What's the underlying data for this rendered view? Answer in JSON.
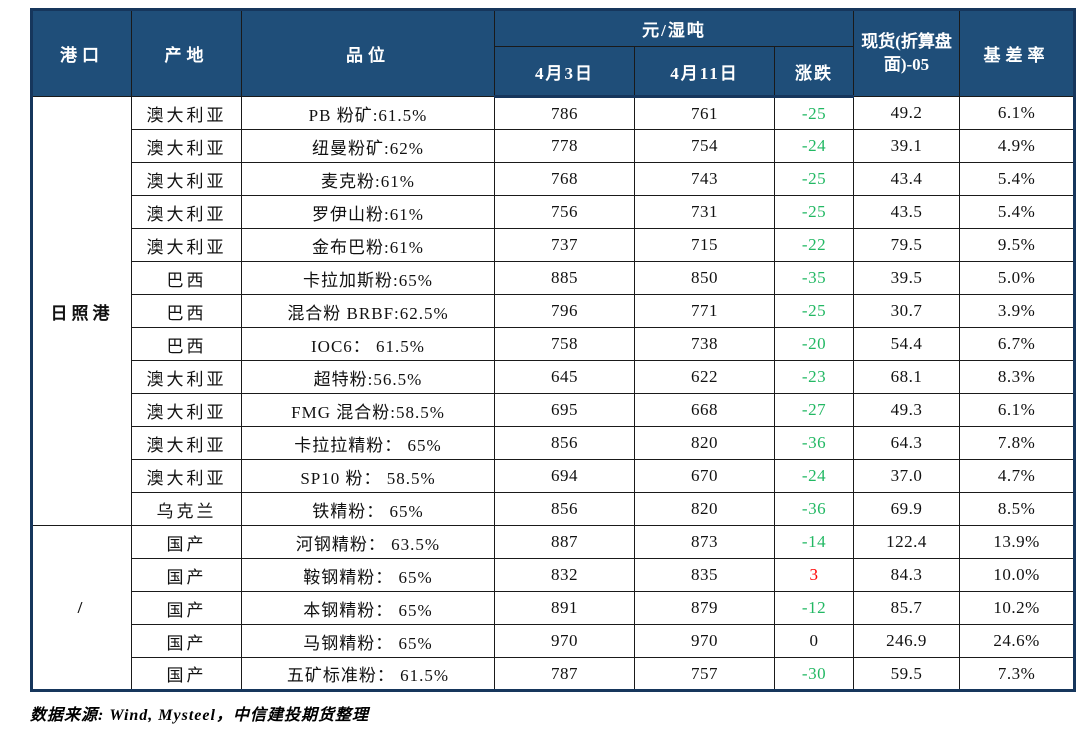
{
  "table": {
    "headers": {
      "port": "港口",
      "origin": "产地",
      "grade": "品位",
      "unit_group": "元/湿吨",
      "date1": "4月3日",
      "date2": "4月11日",
      "change": "涨跌",
      "spot": "现货(折算盘面)-05",
      "basis_rate": "基差率"
    },
    "groups": [
      {
        "port": "日照港",
        "rows": [
          {
            "origin": "澳大利亚",
            "grade": "PB 粉矿:61.5%",
            "price_apr3": "786",
            "price_apr11": "761",
            "change": "-25",
            "spot_vs_05": "49.2",
            "basis_rate": "6.1%"
          },
          {
            "origin": "澳大利亚",
            "grade": "纽曼粉矿:62%",
            "price_apr3": "778",
            "price_apr11": "754",
            "change": "-24",
            "spot_vs_05": "39.1",
            "basis_rate": "4.9%"
          },
          {
            "origin": "澳大利亚",
            "grade": "麦克粉:61%",
            "price_apr3": "768",
            "price_apr11": "743",
            "change": "-25",
            "spot_vs_05": "43.4",
            "basis_rate": "5.4%"
          },
          {
            "origin": "澳大利亚",
            "grade": "罗伊山粉:61%",
            "price_apr3": "756",
            "price_apr11": "731",
            "change": "-25",
            "spot_vs_05": "43.5",
            "basis_rate": "5.4%"
          },
          {
            "origin": "澳大利亚",
            "grade": "金布巴粉:61%",
            "price_apr3": "737",
            "price_apr11": "715",
            "change": "-22",
            "spot_vs_05": "79.5",
            "basis_rate": "9.5%"
          },
          {
            "origin": "巴西",
            "grade": "卡拉加斯粉:65%",
            "price_apr3": "885",
            "price_apr11": "850",
            "change": "-35",
            "spot_vs_05": "39.5",
            "basis_rate": "5.0%"
          },
          {
            "origin": "巴西",
            "grade": "混合粉 BRBF:62.5%",
            "price_apr3": "796",
            "price_apr11": "771",
            "change": "-25",
            "spot_vs_05": "30.7",
            "basis_rate": "3.9%"
          },
          {
            "origin": "巴西",
            "grade": "IOC6： 61.5%",
            "price_apr3": "758",
            "price_apr11": "738",
            "change": "-20",
            "spot_vs_05": "54.4",
            "basis_rate": "6.7%"
          },
          {
            "origin": "澳大利亚",
            "grade": "超特粉:56.5%",
            "price_apr3": "645",
            "price_apr11": "622",
            "change": "-23",
            "spot_vs_05": "68.1",
            "basis_rate": "8.3%"
          },
          {
            "origin": "澳大利亚",
            "grade": "FMG 混合粉:58.5%",
            "price_apr3": "695",
            "price_apr11": "668",
            "change": "-27",
            "spot_vs_05": "49.3",
            "basis_rate": "6.1%"
          },
          {
            "origin": "澳大利亚",
            "grade": "卡拉拉精粉： 65%",
            "price_apr3": "856",
            "price_apr11": "820",
            "change": "-36",
            "spot_vs_05": "64.3",
            "basis_rate": "7.8%"
          },
          {
            "origin": "澳大利亚",
            "grade": "SP10 粉： 58.5%",
            "price_apr3": "694",
            "price_apr11": "670",
            "change": "-24",
            "spot_vs_05": "37.0",
            "basis_rate": "4.7%"
          },
          {
            "origin": "乌克兰",
            "grade": "铁精粉： 65%",
            "price_apr3": "856",
            "price_apr11": "820",
            "change": "-36",
            "spot_vs_05": "69.9",
            "basis_rate": "8.5%"
          }
        ]
      },
      {
        "port": "/",
        "rows": [
          {
            "origin": "国产",
            "grade": "河钢精粉： 63.5%",
            "price_apr3": "887",
            "price_apr11": "873",
            "change": "-14",
            "spot_vs_05": "122.4",
            "basis_rate": "13.9%"
          },
          {
            "origin": "国产",
            "grade": "鞍钢精粉： 65%",
            "price_apr3": "832",
            "price_apr11": "835",
            "change": "3",
            "spot_vs_05": "84.3",
            "basis_rate": "10.0%"
          },
          {
            "origin": "国产",
            "grade": "本钢精粉： 65%",
            "price_apr3": "891",
            "price_apr11": "879",
            "change": "-12",
            "spot_vs_05": "85.7",
            "basis_rate": "10.2%"
          },
          {
            "origin": "国产",
            "grade": "马钢精粉： 65%",
            "price_apr3": "970",
            "price_apr11": "970",
            "change": "0",
            "spot_vs_05": "246.9",
            "basis_rate": "24.6%"
          },
          {
            "origin": "国产",
            "grade": "五矿标准粉： 61.5%",
            "price_apr3": "787",
            "price_apr11": "757",
            "change": "-30",
            "spot_vs_05": "59.5",
            "basis_rate": "7.3%"
          }
        ]
      }
    ]
  },
  "footer": {
    "source": "数据来源: Wind, Mysteel，中信建投期货整理"
  },
  "colors": {
    "header_bg": "#1F4E79",
    "header_text": "#FFFFFF",
    "outer_border": "#16365C",
    "decline_green": "#22B863",
    "advance_red": "#FF0000",
    "neutral_black": "#111111"
  }
}
